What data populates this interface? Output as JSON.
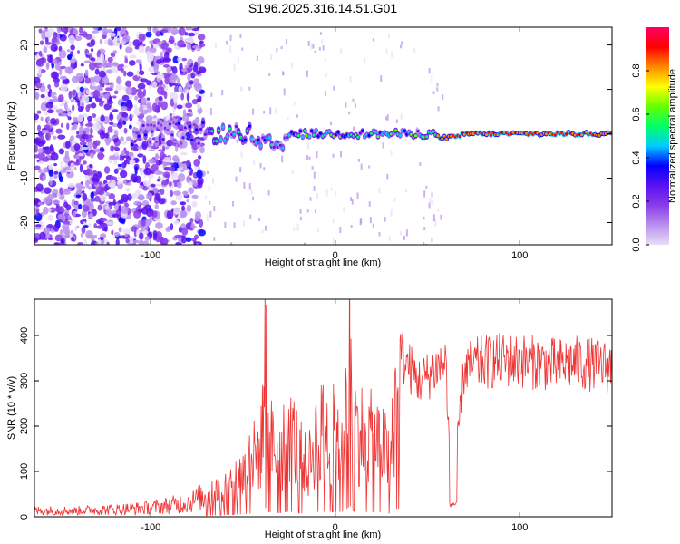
{
  "title": "S196.2025.316.14.51.G01",
  "chart_data": [
    {
      "type": "heatmap",
      "xlabel": "Height of straight line (km)",
      "ylabel": "Frequency (Hz)",
      "xlim": [
        -163,
        150
      ],
      "ylim": [
        -25,
        24
      ],
      "xticks": [
        -100,
        0,
        100
      ],
      "yticks": [
        -20,
        -10,
        0,
        10,
        20
      ],
      "colorbar": {
        "label": "Normalized spectral amplitude",
        "range": [
          0,
          1
        ],
        "ticks": [
          0.0,
          0.2,
          0.4,
          0.6,
          0.8
        ],
        "colors": [
          "#e8ddf8",
          "#b890ee",
          "#8a3ce8",
          "#5a10f0",
          "#0000ff",
          "#00ccff",
          "#00ff66",
          "#66ff00",
          "#ffff00",
          "#ff8800",
          "#ff0000",
          "#ff0066"
        ]
      }
    },
    {
      "type": "line",
      "xlabel": "Height of straight line (km)",
      "ylabel": "SNR (10 * v/v)",
      "xlim": [
        -163,
        150
      ],
      "ylim": [
        0,
        480
      ],
      "xticks": [
        -100,
        0,
        100
      ],
      "yticks": [
        0,
        100,
        200,
        300,
        400
      ],
      "series": [
        {
          "name": "SNR",
          "color": "#ee3333",
          "x": [
            -163,
            -140,
            -120,
            -100,
            -90,
            -80,
            -70,
            -60,
            -50,
            -45,
            -40,
            -38,
            -36,
            -30,
            -25,
            -20,
            -15,
            -10,
            -5,
            0,
            5,
            8,
            10,
            13,
            20,
            25,
            30,
            33,
            35,
            40,
            45,
            50,
            55,
            60,
            63,
            70,
            80,
            90,
            100,
            110,
            120,
            130,
            140,
            150
          ],
          "values": [
            15,
            15,
            18,
            22,
            28,
            35,
            50,
            75,
            110,
            150,
            180,
            425,
            200,
            160,
            230,
            170,
            120,
            215,
            220,
            210,
            230,
            480,
            240,
            220,
            200,
            195,
            130,
            350,
            360,
            330,
            300,
            310,
            330,
            340,
            30,
            330,
            340,
            345,
            345,
            340,
            335,
            340,
            335,
            330
          ]
        }
      ]
    }
  ]
}
